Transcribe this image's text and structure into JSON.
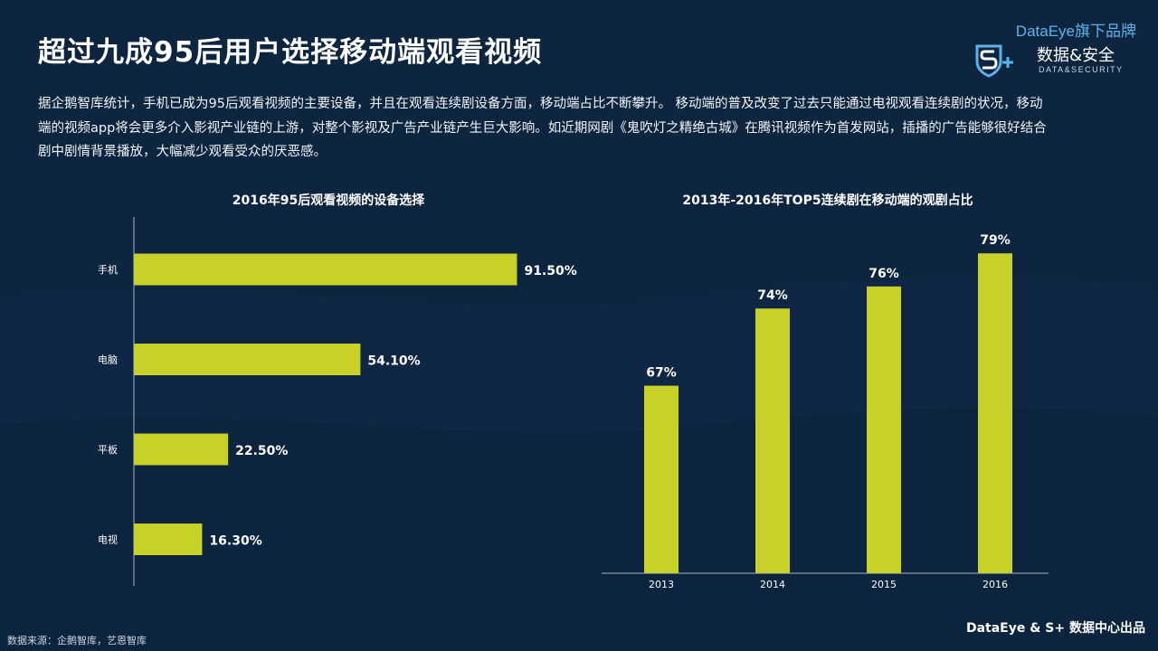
{
  "header": {
    "title": "超过九成95后用户选择移动端观看视频"
  },
  "brand": {
    "top_text": "DataEye旗下品牌",
    "name": "数据&安全",
    "sub": "DATA&SECURITY"
  },
  "intro": "据企鹅智库统计，手机已成为95后观看视频的主要设备，并且在观看连续剧设备方面，移动端占比不断攀升。 移动端的普及改变了过去只能通过电视观看连续剧的状况，移动端的视频app将会更多介入影视产业链的上游，对整个影视及广告产业链产生巨大影响。如近期网剧《鬼吹灯之精绝古城》在腾讯视频作为首发网站，插播的广告能够很好结合剧中剧情背景播放，大幅减少观看受众的厌恶感。",
  "colors": {
    "background": "#0e2540",
    "bar": "#c8d128",
    "axis": "#a9b4c2"
  },
  "chart_data": [
    {
      "type": "bar",
      "orientation": "horizontal",
      "title": "2016年95后观看视频的设备选择",
      "categories": [
        "手机",
        "电脑",
        "平板",
        "电视"
      ],
      "values": [
        91.5,
        54.1,
        22.5,
        16.3
      ],
      "value_labels": [
        "91.50%",
        "54.10%",
        "22.50%",
        "16.30%"
      ],
      "xlim": [
        0,
        100
      ],
      "grid": false
    },
    {
      "type": "bar",
      "orientation": "vertical",
      "title": "2013年-2016年TOP5连续剧在移动端的观剧占比",
      "categories": [
        "2013",
        "2014",
        "2015",
        "2016"
      ],
      "values": [
        67,
        74,
        76,
        79
      ],
      "value_labels": [
        "67%",
        "74%",
        "76%",
        "79%"
      ],
      "ylim": [
        50,
        80
      ],
      "grid": false
    }
  ],
  "footer": {
    "source": "数据来源：企鹅智库，艺恩智库",
    "credit": "DataEye & S+ 数据中心出品"
  }
}
